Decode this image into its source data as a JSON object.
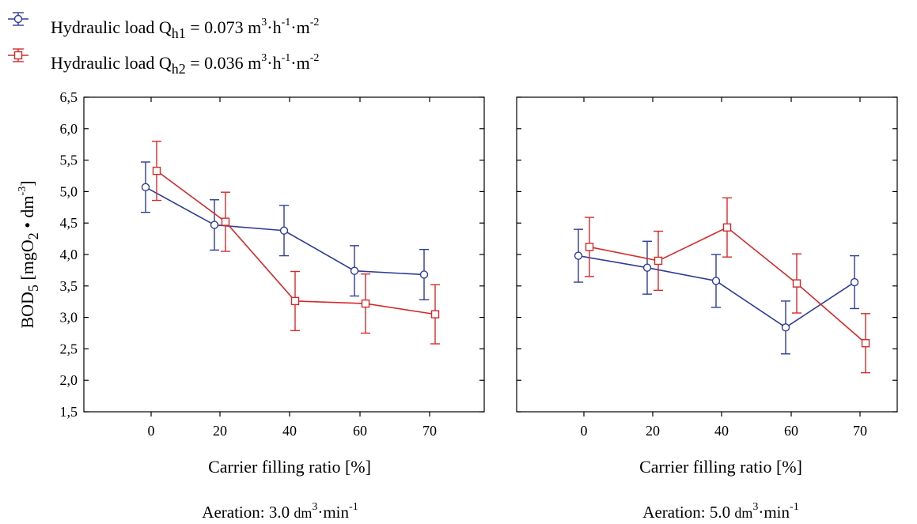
{
  "legend": {
    "entries": [
      {
        "prefix": "Hydraulic load Q",
        "sub": "h1",
        "value": " = 0.073 m",
        "sup1": "3",
        "mid1": "·h",
        "sup2": "-1",
        "mid2": "·m",
        "sup3": "-2",
        "color": "#2f3c96",
        "marker": "circle"
      },
      {
        "prefix": "Hydraulic load Q",
        "sub": "h2",
        "value": " = 0.036 m",
        "sup1": "3",
        "mid1": "·h",
        "sup2": "-1",
        "mid2": "·m",
        "sup3": "-2",
        "color": "#d42a2a",
        "marker": "square"
      }
    ]
  },
  "y_axis_title": {
    "main": "BOD",
    "sub1": "5",
    "mid": " [mgO",
    "sub2": "2",
    "tail": " • dm",
    "sup": "-3",
    "end": "]"
  },
  "chart_data": [
    {
      "type": "line",
      "categories": [
        "0",
        "20",
        "40",
        "60",
        "70"
      ],
      "ylim": [
        1.5,
        6.5
      ],
      "yticks": [
        "1,5",
        "2,0",
        "2,5",
        "3,0",
        "3,5",
        "4,0",
        "4,5",
        "5,0",
        "5,5",
        "6,0",
        "6,5"
      ],
      "xlabel": "Carrier filling ratio [%]",
      "caption": {
        "main": "Aeration: 3.0 ",
        "unit": "dm",
        "sup1": "3",
        "mid": "·min",
        "sup2": "-1"
      },
      "series": [
        {
          "values": [
            5.07,
            4.47,
            4.38,
            3.74,
            3.68
          ],
          "err": [
            0.4,
            0.4,
            0.4,
            0.4,
            0.4
          ],
          "color": "#2f3c96",
          "marker": "circle",
          "offset": -0.12
        },
        {
          "values": [
            5.33,
            4.52,
            3.26,
            3.22,
            3.05
          ],
          "err": [
            0.47,
            0.47,
            0.47,
            0.47,
            0.47
          ],
          "color": "#d42a2a",
          "marker": "square",
          "offset": 0.12
        }
      ]
    },
    {
      "type": "line",
      "categories": [
        "0",
        "20",
        "40",
        "60",
        "70"
      ],
      "ylim": [
        1.5,
        6.5
      ],
      "xlabel": "Carrier filling ratio [%]",
      "caption": {
        "main": "Aeration: 5.0 ",
        "unit": "dm",
        "sup1": "3",
        "mid": "·min",
        "sup2": "-1"
      },
      "series": [
        {
          "values": [
            3.98,
            3.79,
            3.58,
            2.84,
            3.56
          ],
          "err": [
            0.42,
            0.42,
            0.42,
            0.42,
            0.42
          ],
          "color": "#2f3c96",
          "marker": "circle",
          "offset": -0.12
        },
        {
          "values": [
            4.12,
            3.9,
            4.43,
            3.54,
            2.59
          ],
          "err": [
            0.47,
            0.47,
            0.47,
            0.47,
            0.47
          ],
          "color": "#d42a2a",
          "marker": "square",
          "offset": 0.12
        }
      ]
    }
  ]
}
